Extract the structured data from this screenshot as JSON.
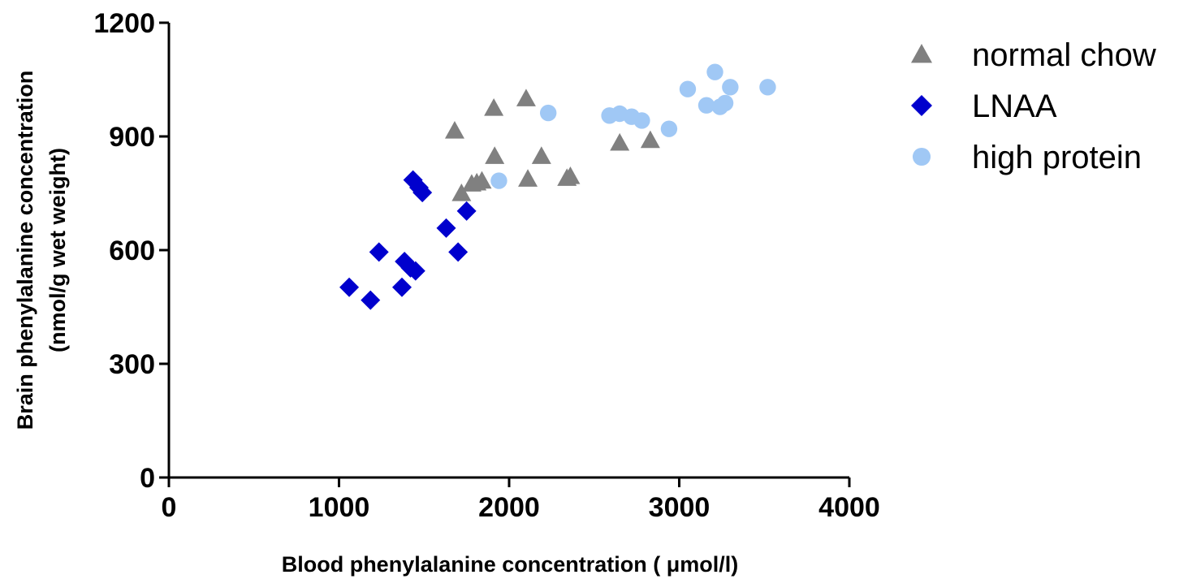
{
  "chart_data": {
    "type": "scatter",
    "xlabel": "Blood phenylalanine concentration ( μmol/l)",
    "ylabel_line1": "Brain phenylalanine concentration",
    "ylabel_line2": "(nmol/g wet weight)",
    "xlim": [
      0,
      4000
    ],
    "ylim": [
      0,
      1200
    ],
    "xticks": [
      0,
      1000,
      2000,
      3000,
      4000
    ],
    "yticks": [
      0,
      300,
      600,
      900,
      1200
    ],
    "grid": false,
    "legend_position": "top-right",
    "series": [
      {
        "name": "normal chow",
        "marker": "triangle-icon",
        "color": "#808080",
        "points": [
          [
            1680,
            915
          ],
          [
            1720,
            750
          ],
          [
            1780,
            775
          ],
          [
            1810,
            778
          ],
          [
            1840,
            783
          ],
          [
            1910,
            975
          ],
          [
            1915,
            848
          ],
          [
            2100,
            1000
          ],
          [
            2110,
            788
          ],
          [
            2190,
            848
          ],
          [
            2340,
            790
          ],
          [
            2360,
            795
          ],
          [
            2650,
            883
          ],
          [
            2830,
            890
          ]
        ]
      },
      {
        "name": "LNAA",
        "marker": "diamond-icon",
        "color": "#0000CD",
        "points": [
          [
            1060,
            502
          ],
          [
            1185,
            468
          ],
          [
            1235,
            595
          ],
          [
            1370,
            502
          ],
          [
            1385,
            570
          ],
          [
            1420,
            553
          ],
          [
            1435,
            785
          ],
          [
            1450,
            545
          ],
          [
            1470,
            765
          ],
          [
            1490,
            752
          ],
          [
            1630,
            658
          ],
          [
            1700,
            595
          ],
          [
            1750,
            703
          ]
        ]
      },
      {
        "name": "high protein",
        "marker": "circle-icon",
        "color": "#A0C8F5",
        "points": [
          [
            1940,
            783
          ],
          [
            2230,
            962
          ],
          [
            2590,
            955
          ],
          [
            2650,
            960
          ],
          [
            2720,
            952
          ],
          [
            2780,
            942
          ],
          [
            2940,
            920
          ],
          [
            3050,
            1025
          ],
          [
            3160,
            982
          ],
          [
            3210,
            1070
          ],
          [
            3240,
            978
          ],
          [
            3270,
            988
          ],
          [
            3300,
            1030
          ],
          [
            3520,
            1030
          ]
        ]
      }
    ]
  }
}
